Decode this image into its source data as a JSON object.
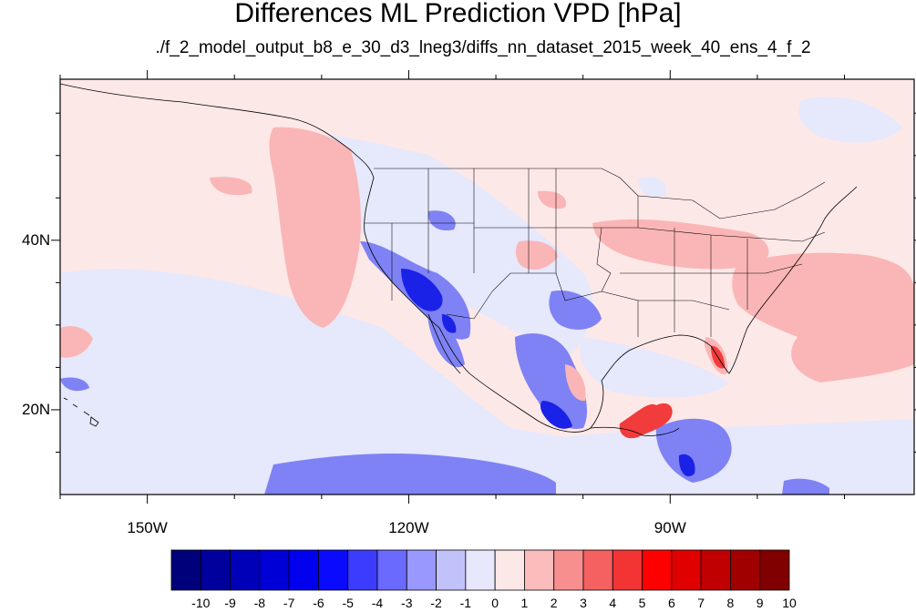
{
  "title": "Differences ML Prediction VPD [hPa]",
  "subtitle": "./f_2_model_output_b8_e_30_d3_lneg3/diffs_nn_dataset_2015_week_40_ens_4_f_2",
  "map": {
    "lon_range": [
      -160,
      -62
    ],
    "lat_range": [
      10,
      59
    ],
    "lon_ticks": [
      {
        "value": -150,
        "label": "150W"
      },
      {
        "value": -120,
        "label": "120W"
      },
      {
        "value": -90,
        "label": "90W"
      }
    ],
    "lat_ticks": [
      {
        "value": 40,
        "label": "40N"
      },
      {
        "value": 20,
        "label": "20N"
      }
    ],
    "colors": {
      "background_value": "#fde8e8",
      "slight_negative": "#e6e8fb",
      "negative": "#7f82f4",
      "strong_negative": "#1a22e8",
      "positive": "#fab6b6",
      "strong_positive": "#f23b3b",
      "coast": "#000000"
    }
  },
  "colorbar": {
    "labels": [
      "-10",
      "-9",
      "-8",
      "-7",
      "-6",
      "-5",
      "-4",
      "-3",
      "-2",
      "-1",
      "0",
      "1",
      "2",
      "3",
      "4",
      "5",
      "6",
      "7",
      "8",
      "9",
      "10"
    ],
    "colors": [
      "#00007a",
      "#00009c",
      "#0000b8",
      "#0000d6",
      "#0000ee",
      "#0a0aff",
      "#3c3cff",
      "#6a6aff",
      "#9898ff",
      "#c2c2fb",
      "#e8e8fc",
      "#fde8e8",
      "#fbbcbc",
      "#f88f8f",
      "#f56060",
      "#f23434",
      "#ff0000",
      "#e00000",
      "#c00000",
      "#a00000",
      "#800000"
    ]
  }
}
